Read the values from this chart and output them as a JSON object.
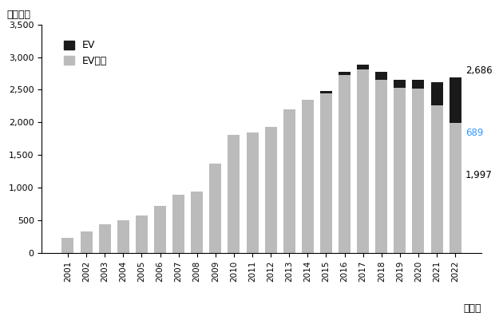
{
  "years": [
    2001,
    2002,
    2003,
    2004,
    2005,
    2006,
    2007,
    2008,
    2009,
    2010,
    2011,
    2012,
    2013,
    2014,
    2015,
    2016,
    2017,
    2018,
    2019,
    2020,
    2021,
    2022
  ],
  "ev": [
    0,
    0,
    0,
    0,
    0,
    0,
    0,
    0,
    0,
    0,
    0,
    0,
    0,
    0,
    33,
    50,
    77,
    125,
    120,
    136,
    352,
    689
  ],
  "non_ev": [
    237,
    333,
    444,
    507,
    576,
    721,
    888,
    938,
    1364,
    1806,
    1850,
    1930,
    2198,
    2349,
    2447,
    2728,
    2812,
    2654,
    2529,
    2515,
    2259,
    1997
  ],
  "total_label_value": 2686,
  "ev_label_value": 689,
  "non_ev_label_value": 1997,
  "bar_color_ev": "#1a1a1a",
  "bar_color_non_ev": "#bbbbbb",
  "ylabel_top": "（万台）",
  "xlabel_bottom": "（年）",
  "ylim": [
    0,
    3500
  ],
  "yticks": [
    0,
    500,
    1000,
    1500,
    2000,
    2500,
    3000,
    3500
  ],
  "legend_ev": "EV",
  "legend_non_ev": "EV以外",
  "background_color": "#ffffff",
  "annotation_color_total": "#000000",
  "annotation_color_ev": "#3399ff",
  "annotation_color_non_ev": "#000000"
}
